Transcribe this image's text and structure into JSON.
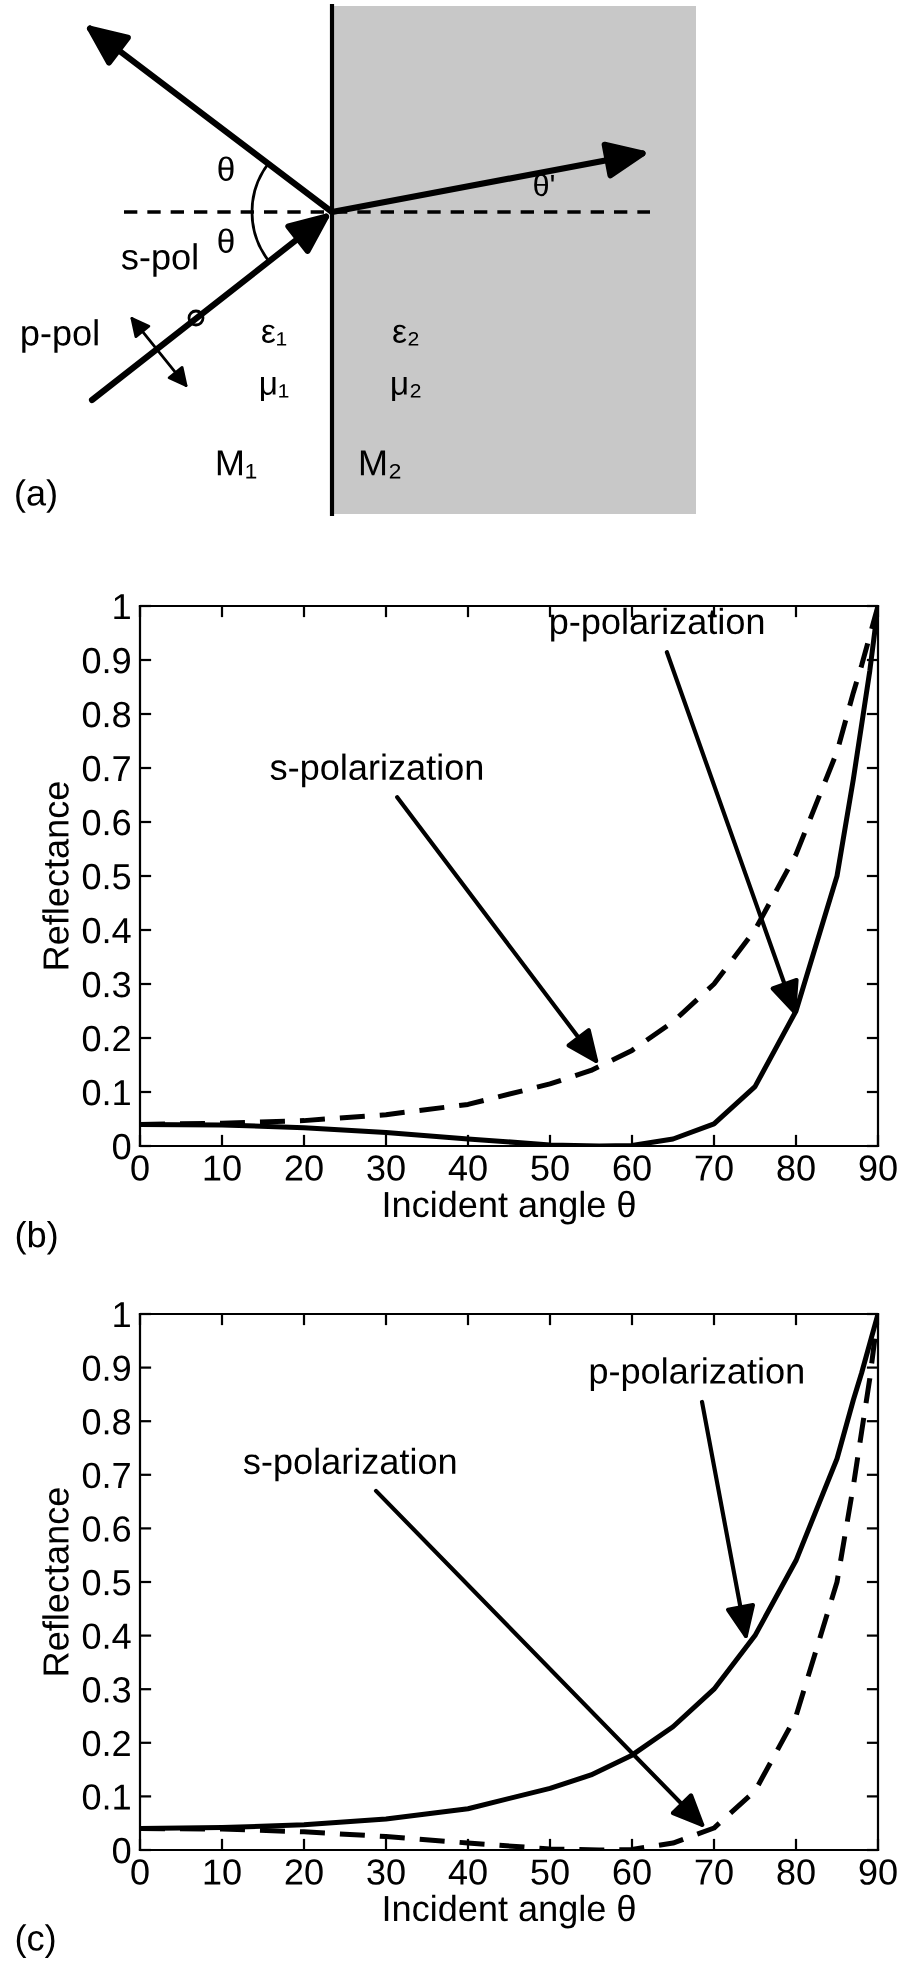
{
  "chart_data": [
    {
      "type": "other",
      "annotations": [
        "θ",
        "θ",
        "θ'",
        "s-pol",
        "p-pol",
        "ε₁",
        "μ₁",
        "ε₂",
        "μ₂",
        "M₁",
        "M₂",
        "(a)"
      ]
    },
    {
      "type": "line",
      "xlabel": "Incident angle θ",
      "ylabel": "Reflectance",
      "xlim": [
        0,
        90
      ],
      "ylim": [
        0,
        1
      ],
      "xticks": [
        0,
        10,
        20,
        30,
        40,
        50,
        60,
        70,
        80,
        90
      ],
      "yticks": [
        0,
        0.1,
        0.2,
        0.3,
        0.4,
        0.5,
        0.6,
        0.7,
        0.8,
        0.9,
        1
      ],
      "grid": false,
      "series": [
        {
          "color": "#000000",
          "line_style": "dashed",
          "x": [
            0,
            10,
            20,
            30,
            40,
            50,
            55,
            60,
            65,
            70,
            75,
            80,
            85,
            87,
            88,
            89,
            90
          ],
          "values": [
            0.04,
            0.042,
            0.047,
            0.058,
            0.077,
            0.115,
            0.14,
            0.177,
            0.23,
            0.3,
            0.4,
            0.54,
            0.73,
            0.84,
            0.89,
            0.945,
            1
          ]
        },
        {
          "color": "#000000",
          "line_style": "solid",
          "x": [
            0,
            10,
            20,
            30,
            40,
            50,
            56,
            60,
            65,
            70,
            75,
            80,
            85,
            87,
            88,
            89,
            90
          ],
          "values": [
            0.04,
            0.039,
            0.034,
            0.025,
            0.013,
            0.002,
            0,
            0.001,
            0.013,
            0.041,
            0.11,
            0.25,
            0.5,
            0.68,
            0.78,
            0.88,
            1
          ]
        }
      ],
      "annotations": [
        {
          "text": "p-polarization",
          "x": 80,
          "y": 0.24
        },
        {
          "text": "s-polarization",
          "x": 56,
          "y": 0.15
        },
        "(b)"
      ]
    },
    {
      "type": "line",
      "xlabel": "Incident angle θ",
      "ylabel": "Reflectance",
      "xlim": [
        0,
        90
      ],
      "ylim": [
        0,
        1
      ],
      "xticks": [
        0,
        10,
        20,
        30,
        40,
        50,
        60,
        70,
        80,
        90
      ],
      "yticks": [
        0,
        0.1,
        0.2,
        0.3,
        0.4,
        0.5,
        0.6,
        0.7,
        0.8,
        0.9,
        1
      ],
      "grid": false,
      "series": [
        {
          "color": "#000000",
          "line_style": "solid",
          "x": [
            0,
            10,
            20,
            30,
            40,
            50,
            55,
            60,
            65,
            70,
            75,
            80,
            85,
            87,
            88,
            89,
            90
          ],
          "values": [
            0.04,
            0.042,
            0.047,
            0.058,
            0.077,
            0.115,
            0.14,
            0.177,
            0.23,
            0.3,
            0.4,
            0.54,
            0.73,
            0.84,
            0.89,
            0.945,
            1
          ]
        },
        {
          "color": "#000000",
          "line_style": "dashed",
          "x": [
            0,
            10,
            20,
            30,
            40,
            50,
            56,
            60,
            65,
            70,
            75,
            80,
            85,
            87,
            88,
            89,
            90
          ],
          "values": [
            0.04,
            0.039,
            0.034,
            0.025,
            0.013,
            0.002,
            0,
            0.001,
            0.013,
            0.041,
            0.11,
            0.25,
            0.5,
            0.68,
            0.78,
            0.88,
            1
          ]
        }
      ],
      "annotations": [
        {
          "text": "p-polarization",
          "x": 74,
          "y": 0.39
        },
        {
          "text": "s-polarization",
          "x": 69,
          "y": 0.04
        },
        "(c)"
      ]
    }
  ]
}
